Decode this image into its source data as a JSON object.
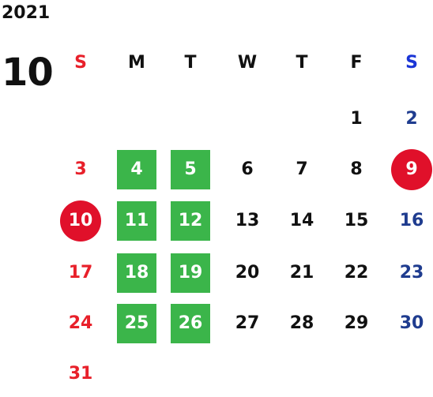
{
  "calendar": {
    "year": "2021",
    "month": "10",
    "weekday_headers": [
      "S",
      "M",
      "T",
      "W",
      "T",
      "F",
      "S"
    ],
    "weeks": [
      [
        "",
        "",
        "",
        "",
        "",
        "1",
        "2"
      ],
      [
        "3",
        "4",
        "5",
        "6",
        "7",
        "8",
        "9"
      ],
      [
        "10",
        "11",
        "12",
        "13",
        "14",
        "15",
        "16"
      ],
      [
        "17",
        "18",
        "19",
        "20",
        "21",
        "22",
        "23"
      ],
      [
        "24",
        "25",
        "26",
        "27",
        "28",
        "29",
        "30"
      ],
      [
        "31",
        "",
        "",
        "",
        "",
        "",
        ""
      ]
    ],
    "green_highlight_days": [
      "4",
      "5",
      "11",
      "12",
      "18",
      "19",
      "25",
      "26"
    ],
    "red_circle_days": [
      "9",
      "10"
    ],
    "colors": {
      "sunday": "#e8202a",
      "saturday_header": "#1a35d6",
      "saturday": "#1f3c8f",
      "weekday": "#111111",
      "green_highlight": "#3bb54a",
      "red_circle": "#e0102a",
      "highlight_text": "#ffffff"
    }
  }
}
